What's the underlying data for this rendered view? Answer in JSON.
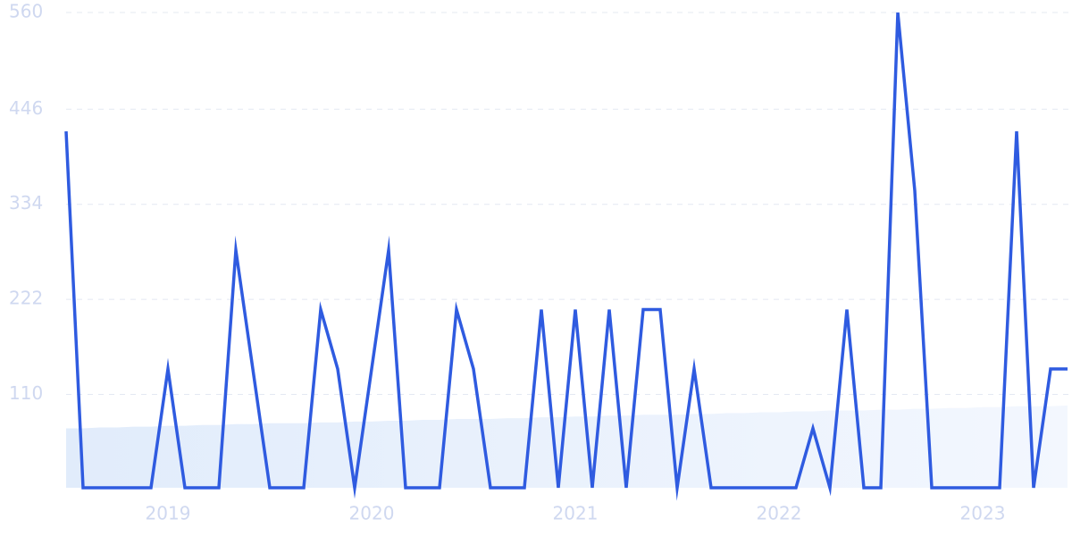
{
  "chart_data": {
    "type": "line",
    "categories": [
      null,
      null,
      null,
      null,
      null,
      null,
      "2019",
      null,
      null,
      null,
      null,
      null,
      null,
      null,
      null,
      null,
      null,
      null,
      "2020",
      null,
      null,
      null,
      null,
      null,
      null,
      null,
      null,
      null,
      null,
      null,
      "2021",
      null,
      null,
      null,
      null,
      null,
      null,
      null,
      null,
      null,
      null,
      null,
      "2022",
      null,
      null,
      null,
      null,
      null,
      null,
      null,
      null,
      null,
      null,
      null,
      "2023",
      null,
      null,
      null,
      null,
      null
    ],
    "series": [
      {
        "color": "#2f5be0",
        "values": [
          420,
          0,
          0,
          0,
          0,
          0,
          140,
          0,
          0,
          0,
          280,
          140,
          0,
          0,
          0,
          210,
          140,
          0,
          140,
          280,
          0,
          0,
          0,
          210,
          140,
          0,
          0,
          0,
          210,
          0,
          210,
          0,
          210,
          0,
          210,
          210,
          0,
          140,
          0,
          0,
          0,
          0,
          0,
          0,
          70,
          0,
          210,
          0,
          0,
          560,
          350,
          0,
          0,
          0,
          0,
          0,
          420,
          0,
          140,
          140
        ]
      },
      {
        "color": "#e3eefc",
        "fill": true,
        "values": [
          70,
          70,
          71,
          71,
          72,
          72,
          73,
          73,
          74,
          74,
          75,
          75,
          76,
          76,
          76,
          77,
          77,
          78,
          78,
          79,
          79,
          80,
          80,
          81,
          81,
          81,
          82,
          82,
          83,
          83,
          84,
          84,
          85,
          85,
          86,
          86,
          86,
          87,
          87,
          88,
          88,
          89,
          89,
          90,
          90,
          91,
          91,
          91,
          92,
          92,
          93,
          93,
          94,
          94,
          95,
          95,
          96,
          96,
          96,
          97
        ]
      }
    ],
    "ylim": [
      0,
      560
    ],
    "yticks": [
      110,
      222,
      334,
      446,
      560
    ],
    "grid": true
  }
}
